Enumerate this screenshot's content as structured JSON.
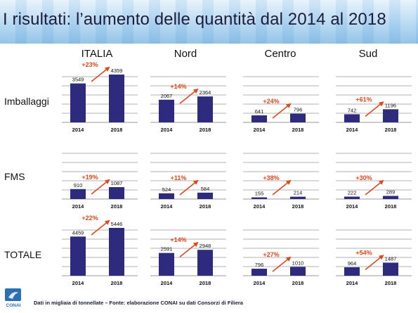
{
  "title": "I risultati: l’aumento delle quantità dal 2014 al 2018",
  "columns": [
    "ITALIA",
    "Nord",
    "Centro",
    "Sud"
  ],
  "rows": [
    "Imballaggi",
    "FMS",
    "TOTALE"
  ],
  "footnote": "Dati in migliaia di tonnellate – Fonte: elaborazione CONAI su dati Consorzi di Filiera",
  "logo_text": "CONAI",
  "colors": {
    "bar": "#2e2a7e",
    "arrow": "#e0471c",
    "grid": "#9a9a9a"
  },
  "chart_data": [
    {
      "type": "bar",
      "region": "ITALIA",
      "measure": "Imballaggi",
      "categories": [
        "2014",
        "2018"
      ],
      "values": [
        3549,
        4359
      ],
      "change": "+23%",
      "grid": true
    },
    {
      "type": "bar",
      "region": "Nord",
      "measure": "Imballaggi",
      "categories": [
        "2014",
        "2018"
      ],
      "values": [
        2067,
        2364
      ],
      "change": "+14%",
      "grid": true
    },
    {
      "type": "bar",
      "region": "Centro",
      "measure": "Imballaggi",
      "categories": [
        "2014",
        "2018"
      ],
      "values": [
        641,
        796
      ],
      "change": "+24%",
      "grid": true
    },
    {
      "type": "bar",
      "region": "Sud",
      "measure": "Imballaggi",
      "categories": [
        "2014",
        "2018"
      ],
      "values": [
        742,
        1196
      ],
      "change": "+61%",
      "grid": true
    },
    {
      "type": "bar",
      "region": "ITALIA",
      "measure": "FMS",
      "categories": [
        "2014",
        "2018"
      ],
      "values": [
        910,
        1087
      ],
      "change": "+19%",
      "grid": true
    },
    {
      "type": "bar",
      "region": "Nord",
      "measure": "FMS",
      "categories": [
        "2014",
        "2018"
      ],
      "values": [
        524,
        584
      ],
      "change": "+11%",
      "grid": true
    },
    {
      "type": "bar",
      "region": "Centro",
      "measure": "FMS",
      "categories": [
        "2014",
        "2018"
      ],
      "values": [
        155,
        214
      ],
      "change": "+38%",
      "grid": true
    },
    {
      "type": "bar",
      "region": "Sud",
      "measure": "FMS",
      "categories": [
        "2014",
        "2018"
      ],
      "values": [
        222,
        289
      ],
      "change": "+30%",
      "grid": true
    },
    {
      "type": "bar",
      "region": "ITALIA",
      "measure": "TOTALE",
      "categories": [
        "2014",
        "2018"
      ],
      "values": [
        4459,
        5446
      ],
      "change": "+22%",
      "grid": true
    },
    {
      "type": "bar",
      "region": "Nord",
      "measure": "TOTALE",
      "categories": [
        "2014",
        "2018"
      ],
      "values": [
        2591,
        2948
      ],
      "change": "+14%",
      "grid": true
    },
    {
      "type": "bar",
      "region": "Centro",
      "measure": "TOTALE",
      "categories": [
        "2014",
        "2018"
      ],
      "values": [
        796,
        1010
      ],
      "change": "+27%",
      "grid": true
    },
    {
      "type": "bar",
      "region": "Sud",
      "measure": "TOTALE",
      "categories": [
        "2014",
        "2018"
      ],
      "values": [
        964,
        1487
      ],
      "change": "+54%",
      "grid": true
    }
  ]
}
